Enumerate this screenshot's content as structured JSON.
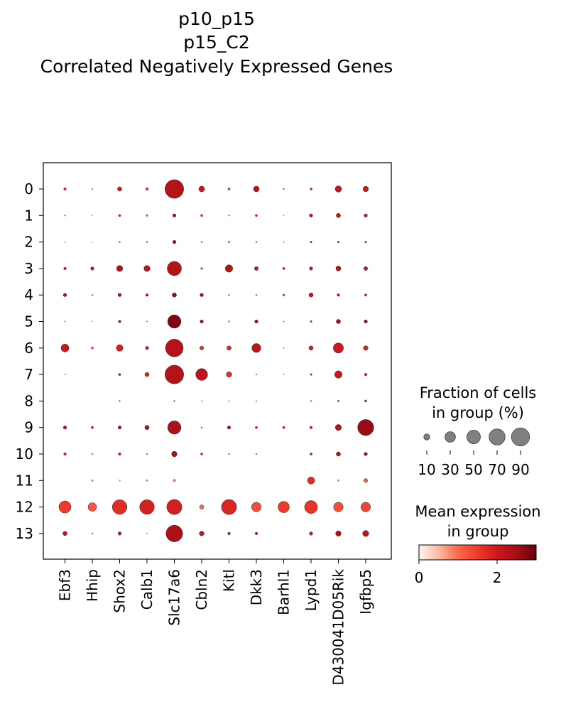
{
  "chart_data": {
    "type": "dotplot",
    "title_lines": [
      "p10_p15",
      "p15_C2",
      "Correlated Negatively Expressed Genes"
    ],
    "genes": [
      "Ebf3",
      "Hhip",
      "Shox2",
      "Calb1",
      "Slc17a6",
      "Cbln2",
      "Kitl",
      "Dkk3",
      "Barhl1",
      "Lypd1",
      "D430041D05Rik",
      "Igfbp5"
    ],
    "groups": [
      "0",
      "1",
      "2",
      "3",
      "4",
      "5",
      "6",
      "7",
      "8",
      "9",
      "10",
      "11",
      "12",
      "13"
    ],
    "fraction_pct": [
      [
        2,
        0.5,
        5,
        2,
        95,
        9,
        1.5,
        9,
        0.5,
        1.5,
        11,
        8
      ],
      [
        0.5,
        0.3,
        1.5,
        1,
        3,
        1.5,
        0.5,
        1.5,
        0.3,
        3,
        5,
        3
      ],
      [
        0.3,
        0.2,
        0.5,
        0.5,
        3,
        0.5,
        0.8,
        0.5,
        0.3,
        1,
        1,
        1
      ],
      [
        2,
        3,
        10,
        10,
        55,
        1,
        15,
        4,
        1.5,
        3,
        7,
        4
      ],
      [
        3,
        0.5,
        3,
        2,
        5,
        3,
        0.5,
        0.5,
        1,
        5,
        2,
        1.5
      ],
      [
        0.3,
        0.2,
        2,
        0.3,
        48,
        3,
        0.5,
        3,
        0.3,
        1,
        5,
        3
      ],
      [
        17,
        1.5,
        12,
        3,
        85,
        4,
        5,
        22,
        0.3,
        5,
        28,
        6
      ],
      [
        0.3,
        0,
        1.5,
        5,
        95,
        38,
        8,
        0.5,
        0.3,
        1,
        15,
        2
      ],
      [
        0,
        0,
        0.5,
        0,
        0.5,
        0.3,
        0.3,
        0.3,
        0,
        0.5,
        1,
        1.5
      ],
      [
        3,
        1.5,
        3,
        5,
        48,
        0.5,
        3,
        1.5,
        1.5,
        2,
        10,
        70
      ],
      [
        2,
        0.5,
        2,
        0.5,
        8,
        1.5,
        0.5,
        0.5,
        0,
        1.5,
        5,
        3
      ],
      [
        0,
        1,
        0.5,
        1,
        2,
        0,
        0,
        0,
        0,
        14,
        1,
        4
      ],
      [
        40,
        20,
        58,
        58,
        62,
        5,
        62,
        25,
        35,
        45,
        25,
        25
      ],
      [
        5,
        0.5,
        3,
        0.3,
        75,
        6,
        2,
        2,
        0,
        3,
        8,
        10
      ]
    ],
    "mean_expr": [
      [
        1.8,
        1.0,
        2.0,
        1.8,
        2.3,
        2.0,
        1.8,
        2.2,
        1.5,
        1.8,
        2.1,
        2.0
      ],
      [
        1.0,
        0.8,
        2.0,
        1.5,
        2.3,
        1.8,
        1.5,
        1.8,
        0.8,
        2.0,
        2.1,
        2.0
      ],
      [
        1.0,
        0.8,
        2.0,
        2.0,
        2.5,
        2.0,
        2.0,
        2.0,
        1.0,
        2.0,
        2.1,
        2.0
      ],
      [
        2.0,
        2.0,
        2.3,
        2.2,
        2.3,
        2.0,
        2.3,
        2.1,
        2.0,
        2.1,
        2.2,
        2.0
      ],
      [
        2.3,
        1.5,
        2.5,
        2.3,
        2.6,
        2.5,
        2.0,
        1.5,
        2.3,
        2.0,
        2.1,
        2.2
      ],
      [
        1.0,
        0.8,
        2.5,
        1.5,
        2.8,
        2.4,
        1.5,
        2.5,
        1.0,
        2.0,
        2.5,
        2.5
      ],
      [
        2.0,
        1.5,
        1.9,
        1.9,
        2.3,
        1.6,
        1.8,
        2.2,
        1.0,
        1.9,
        2.0,
        1.8
      ],
      [
        1.5,
        0,
        2.2,
        1.8,
        2.3,
        2.2,
        1.7,
        1.2,
        0.8,
        2.0,
        2.0,
        2.0
      ],
      [
        0,
        0,
        1.5,
        0,
        2.0,
        1.5,
        1.5,
        1.5,
        0,
        1.5,
        1.5,
        2.0
      ],
      [
        2.2,
        2.2,
        2.2,
        2.4,
        2.4,
        1.8,
        2.2,
        2.2,
        2.2,
        2.2,
        2.3,
        2.6
      ],
      [
        2.2,
        1.5,
        2.2,
        1.5,
        2.4,
        2.0,
        1.5,
        1.5,
        0,
        2.2,
        2.3,
        2.4
      ],
      [
        0,
        0.8,
        0.8,
        0.8,
        0.9,
        0,
        0,
        0,
        0,
        1.7,
        0.8,
        1.1
      ],
      [
        1.5,
        1.2,
        1.7,
        1.9,
        1.9,
        1.0,
        1.8,
        1.3,
        1.5,
        1.6,
        1.3,
        1.4
      ],
      [
        2.1,
        1.5,
        2.0,
        1.0,
        2.4,
        2.1,
        2.3,
        2.3,
        0,
        2.1,
        2.3,
        2.2
      ]
    ],
    "size_legend": {
      "title_lines": [
        "Fraction of cells",
        "in group (%)"
      ],
      "values": [
        10,
        30,
        50,
        70,
        90
      ],
      "labels": [
        "10",
        "30",
        "50",
        "70",
        "90"
      ]
    },
    "color_legend": {
      "title_lines": [
        "Mean expression",
        "in group"
      ],
      "ticks": [
        0,
        2
      ],
      "tick_labels": [
        "0",
        "2"
      ],
      "vmin": 0,
      "vmax": 3,
      "colormap": "Reds",
      "colors": [
        "#fff5f0",
        "#fcbba1",
        "#fb6a4a",
        "#ef3b2c",
        "#cb181d",
        "#a50f15",
        "#67000d"
      ]
    }
  }
}
